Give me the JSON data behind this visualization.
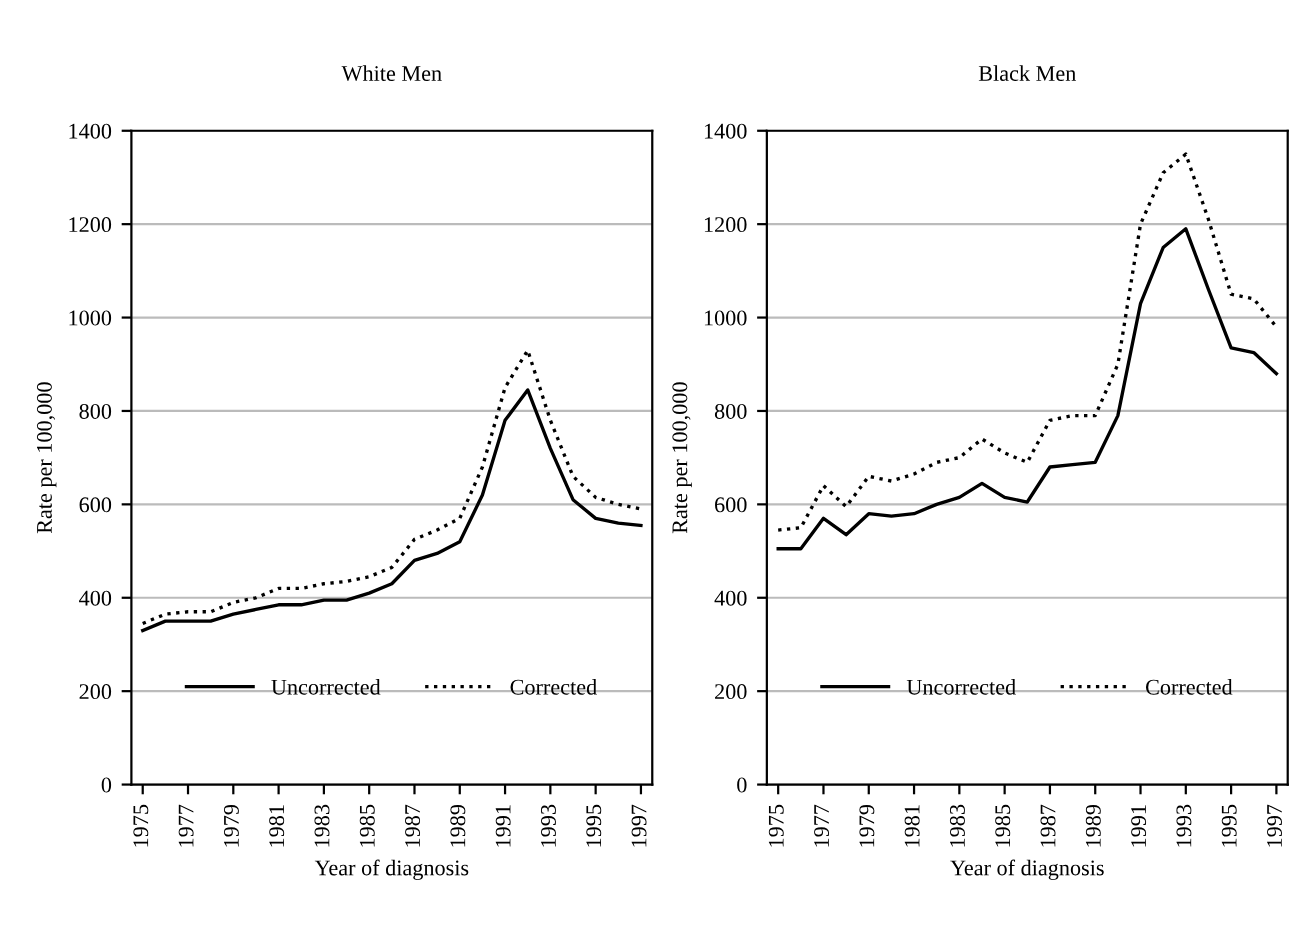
{
  "chart_data": [
    {
      "type": "line",
      "title": "White Men",
      "xlabel": "Year of diagnosis",
      "ylabel": "Rate per 100,000",
      "x": [
        1975,
        1976,
        1977,
        1978,
        1979,
        1980,
        1981,
        1982,
        1983,
        1984,
        1985,
        1986,
        1987,
        1988,
        1989,
        1990,
        1991,
        1992,
        1993,
        1994,
        1995,
        1996,
        1997
      ],
      "series": [
        {
          "name": "Uncorrected",
          "color": "#000000",
          "line_style": "solid",
          "values": [
            330,
            350,
            350,
            350,
            365,
            375,
            385,
            385,
            395,
            395,
            410,
            430,
            480,
            495,
            520,
            620,
            780,
            845,
            720,
            610,
            570,
            560,
            555
          ]
        },
        {
          "name": "Corrected",
          "color": "#000000",
          "line_style": "dotted",
          "values": [
            345,
            365,
            370,
            370,
            390,
            400,
            420,
            420,
            430,
            435,
            445,
            465,
            525,
            545,
            570,
            680,
            850,
            930,
            780,
            660,
            615,
            600,
            590
          ]
        }
      ],
      "xlim": [
        1974.5,
        1997.5
      ],
      "xticks": [
        1975,
        1977,
        1979,
        1981,
        1983,
        1985,
        1987,
        1989,
        1991,
        1993,
        1995,
        1997
      ],
      "ylim": [
        0,
        1400
      ],
      "yticks": [
        0,
        200,
        400,
        600,
        800,
        1000,
        1200,
        1400
      ],
      "grid": "y",
      "legend": "bottom",
      "marker": "none"
    },
    {
      "type": "line",
      "title": "Black Men",
      "xlabel": "Year of diagnosis",
      "ylabel": "Rate per 100,000",
      "x": [
        1975,
        1976,
        1977,
        1978,
        1979,
        1980,
        1981,
        1982,
        1983,
        1984,
        1985,
        1986,
        1987,
        1988,
        1989,
        1990,
        1991,
        1992,
        1993,
        1994,
        1995,
        1996,
        1997
      ],
      "series": [
        {
          "name": "Uncorrected",
          "color": "#000000",
          "line_style": "solid",
          "values": [
            505,
            505,
            570,
            535,
            580,
            575,
            580,
            600,
            615,
            645,
            615,
            605,
            680,
            685,
            690,
            790,
            1030,
            1150,
            1190,
            1060,
            935,
            925,
            880
          ]
        },
        {
          "name": "Corrected",
          "color": "#000000",
          "line_style": "dotted",
          "values": [
            545,
            550,
            640,
            595,
            660,
            650,
            665,
            690,
            700,
            740,
            710,
            690,
            780,
            790,
            790,
            900,
            1200,
            1310,
            1350,
            1210,
            1050,
            1040,
            980
          ]
        }
      ],
      "xlim": [
        1974.5,
        1997.5
      ],
      "xticks": [
        1975,
        1977,
        1979,
        1981,
        1983,
        1985,
        1987,
        1989,
        1991,
        1993,
        1995,
        1997
      ],
      "ylim": [
        0,
        1400
      ],
      "yticks": [
        0,
        200,
        400,
        600,
        800,
        1000,
        1200,
        1400
      ],
      "grid": "y",
      "legend": "bottom",
      "marker": "none"
    }
  ]
}
